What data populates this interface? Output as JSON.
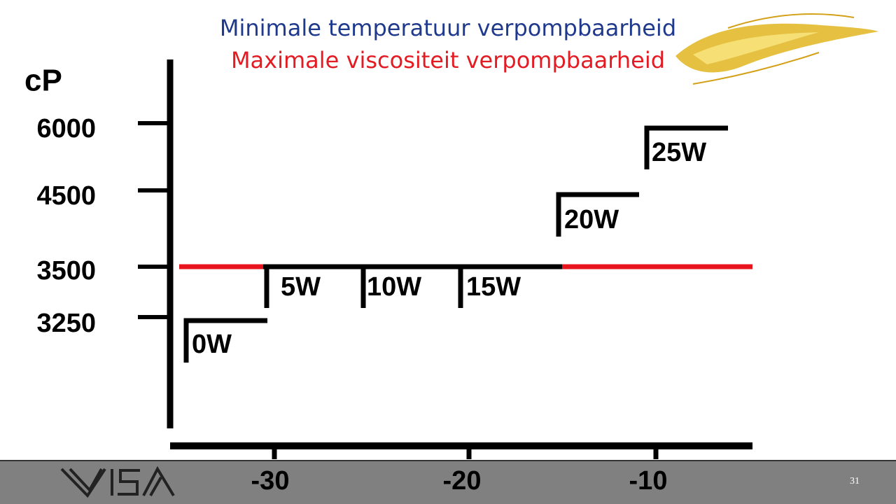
{
  "title": {
    "line1": "Minimale temperatuur verpompbaarheid",
    "line2": "Maximale viscositeit verpompbaarheid"
  },
  "y_axis": {
    "unit": "cP",
    "labels": [
      "6000",
      "4500",
      "3500",
      "3250"
    ]
  },
  "x_axis": {
    "labels": [
      "-30",
      "-20",
      "-10"
    ]
  },
  "grades": [
    "0W",
    "5W",
    "10W",
    "15W",
    "20W",
    "25W"
  ],
  "footer": {
    "page": "31"
  }
}
